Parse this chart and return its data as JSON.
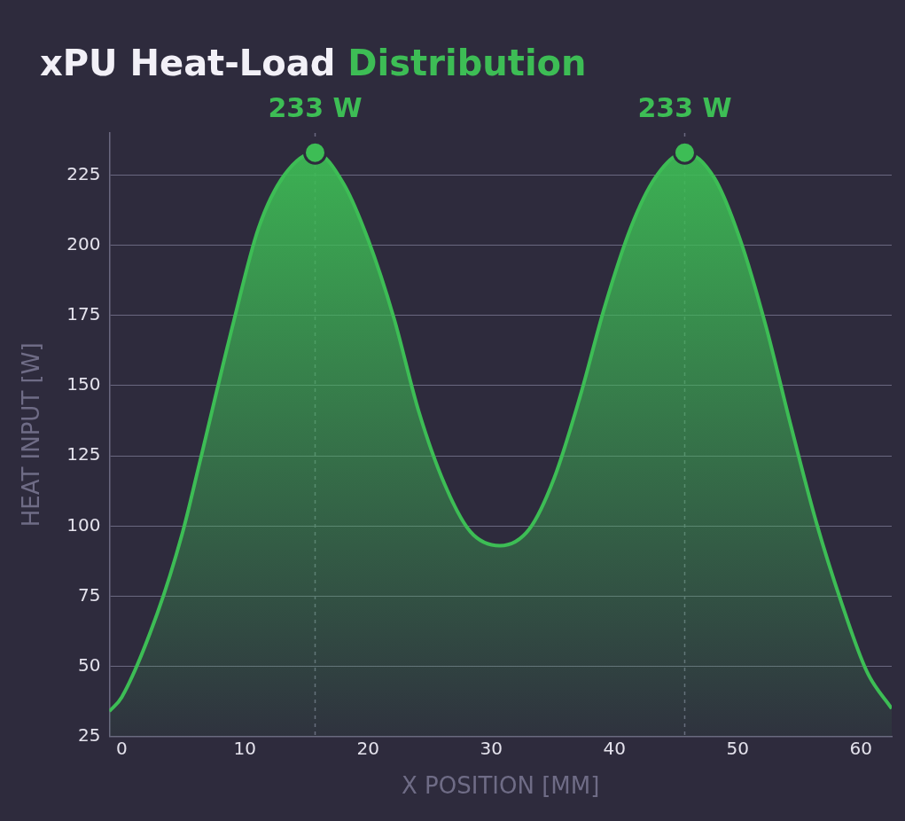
{
  "chart_data": {
    "type": "area",
    "title": "xPU Heat-Load Distribution",
    "xlabel": "X POSITION [MM]",
    "ylabel": "HEAT INPUT [W]",
    "xlim": [
      -1,
      62.5
    ],
    "xticks": [
      0,
      10,
      20,
      30,
      40,
      50,
      60
    ],
    "ylim": [
      25,
      240
    ],
    "yticks": [
      25,
      50,
      75,
      100,
      125,
      150,
      175,
      200,
      225
    ],
    "grid": "y",
    "series": [
      {
        "color": "#3dbd55",
        "x": [
          -1,
          0,
          2.9,
          4.9,
          6.3,
          9.1,
          11.1,
          13.2,
          15.7,
          18,
          20,
          22.1,
          24.1,
          26.2,
          28.3,
          30.7,
          33.1,
          35.1,
          37.2,
          39.2,
          41.3,
          43.3,
          45.7,
          48.1,
          50.2,
          52.3,
          54.3,
          56.4,
          58.4,
          60.5,
          62.5
        ],
        "values": [
          34,
          39,
          69,
          97,
          122,
          173,
          206,
          225,
          233,
          222,
          202,
          174,
          141,
          115,
          98,
          93,
          99,
          117,
          146,
          178,
          206,
          224,
          233,
          224,
          202,
          171,
          136,
          101,
          73,
          48,
          35
        ]
      },
      {
        "type": "scatter",
        "color": "#3dbd55",
        "marker": "circle",
        "x": [
          15.7,
          45.7
        ],
        "values": [
          233,
          233
        ]
      }
    ],
    "ref_lines": [
      {
        "axis": "x",
        "value": 15.7,
        "color": "#6a6880",
        "line_style": "dashed"
      },
      {
        "axis": "x",
        "value": 45.7,
        "color": "#6a6880",
        "line_style": "dashed"
      }
    ],
    "annotations": [
      {
        "text": "233 W",
        "x": 15.7,
        "y": 233
      },
      {
        "text": "233 W",
        "x": 45.7,
        "y": 233
      }
    ]
  }
}
